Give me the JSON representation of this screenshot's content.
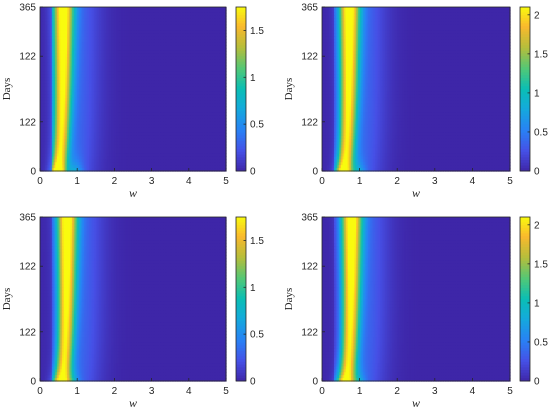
{
  "chart_data": [
    {
      "type": "heatmap",
      "panel": "top-left",
      "xlabel": "w",
      "ylabel": "Days",
      "xlim": [
        0,
        5
      ],
      "x_ticks": [
        0,
        1,
        2,
        3,
        4,
        5
      ],
      "y_tick_labels": [
        "0",
        "122",
        "122",
        "365"
      ],
      "colorbar_ticks": [
        0,
        0.5,
        1,
        1.5
      ],
      "colorbar_max": 1.75,
      "colormap": "parula",
      "ridge_w": 0.62,
      "low_days_features": [
        {
          "w": 0.45,
          "amp": 1.5
        },
        {
          "w": 0.95,
          "amp": 0.9
        }
      ]
    },
    {
      "type": "heatmap",
      "panel": "top-right",
      "xlabel": "w",
      "ylabel": "Days",
      "xlim": [
        0,
        5
      ],
      "x_ticks": [
        0,
        1,
        2,
        3,
        4,
        5
      ],
      "y_tick_labels": [
        "0",
        "122",
        "122",
        "365"
      ],
      "colorbar_ticks": [
        0,
        0.5,
        1,
        1.5,
        2
      ],
      "colorbar_max": 2.1,
      "colormap": "parula",
      "ridge_w": 0.72,
      "low_days_features": [
        {
          "w": 0.5,
          "amp": 1.6
        },
        {
          "w": 0.95,
          "amp": 1.1
        }
      ]
    },
    {
      "type": "heatmap",
      "panel": "bottom-left",
      "xlabel": "w",
      "ylabel": "Days",
      "xlim": [
        0,
        5
      ],
      "x_ticks": [
        0,
        1,
        2,
        3,
        4,
        5
      ],
      "y_tick_labels": [
        "0",
        "122",
        "122",
        "365"
      ],
      "colorbar_ticks": [
        0,
        0.5,
        1,
        1.5
      ],
      "colorbar_max": 1.75,
      "colormap": "parula",
      "ridge_w": 0.72,
      "low_days_features": [
        {
          "w": 0.45,
          "amp": 1.2
        },
        {
          "w": 0.85,
          "amp": 1.0
        }
      ]
    },
    {
      "type": "heatmap",
      "panel": "bottom-right",
      "xlabel": "w",
      "ylabel": "Days",
      "xlim": [
        0,
        5
      ],
      "x_ticks": [
        0,
        1,
        2,
        3,
        4,
        5
      ],
      "y_tick_labels": [
        "0",
        "122",
        "122",
        "365"
      ],
      "colorbar_ticks": [
        0,
        0.5,
        1,
        1.5,
        2
      ],
      "colorbar_max": 2.1,
      "colormap": "parula",
      "ridge_w": 0.78,
      "low_days_features": [
        {
          "w": 0.5,
          "amp": 1.5
        },
        {
          "w": 0.95,
          "amp": 1.1
        }
      ]
    }
  ]
}
